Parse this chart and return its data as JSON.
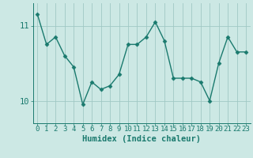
{
  "x": [
    0,
    1,
    2,
    3,
    4,
    5,
    6,
    7,
    8,
    9,
    10,
    11,
    12,
    13,
    14,
    15,
    16,
    17,
    18,
    19,
    20,
    21,
    22,
    23
  ],
  "y": [
    11.15,
    10.75,
    10.85,
    10.6,
    10.45,
    9.95,
    10.25,
    10.15,
    10.2,
    10.35,
    10.75,
    10.75,
    10.85,
    11.05,
    10.8,
    10.3,
    10.3,
    10.3,
    10.25,
    10.0,
    10.5,
    10.85,
    10.65,
    10.65
  ],
  "line_color": "#1a7a6e",
  "marker": "D",
  "marker_size": 2.5,
  "linewidth": 1.0,
  "xlabel": "Humidex (Indice chaleur)",
  "xlim": [
    -0.5,
    23.5
  ],
  "ylim": [
    9.7,
    11.3
  ],
  "yticks": [
    10,
    11
  ],
  "xticks": [
    0,
    1,
    2,
    3,
    4,
    5,
    6,
    7,
    8,
    9,
    10,
    11,
    12,
    13,
    14,
    15,
    16,
    17,
    18,
    19,
    20,
    21,
    22,
    23
  ],
  "bg_color": "#cce8e4",
  "grid_color": "#a0c8c4",
  "tick_color": "#1a7a6e",
  "label_color": "#1a7a6e",
  "xlabel_fontsize": 7.5,
  "tick_fontsize": 6.5,
  "ytick_fontsize": 7.5
}
